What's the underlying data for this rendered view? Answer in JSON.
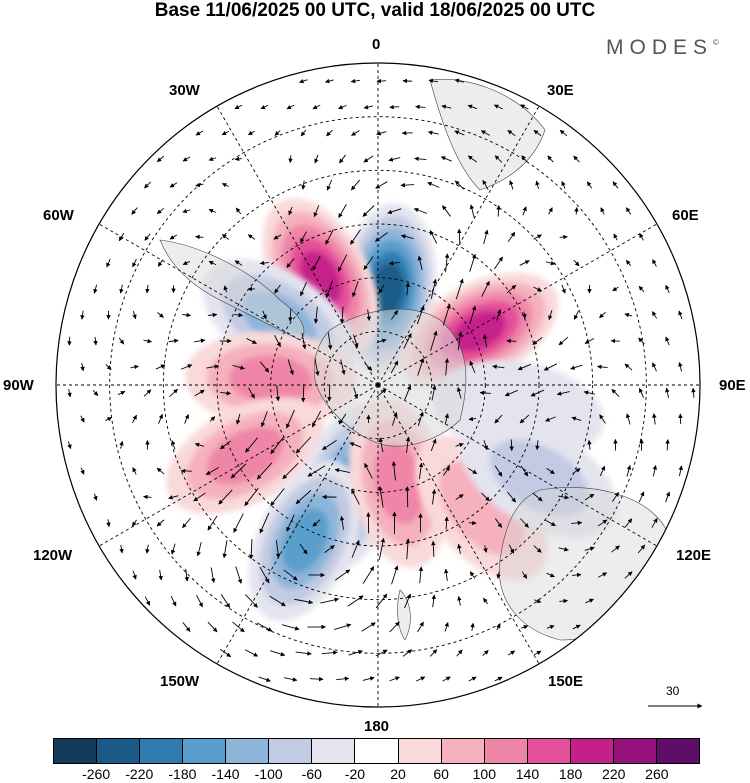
{
  "title": "Base 11/06/2025 00 UTC, valid 18/06/2025 00 UTC",
  "brand": "MODES",
  "brand_mark": "©",
  "longitude_labels": {
    "lon_0": "0",
    "lon_30e": "30E",
    "lon_60e": "60E",
    "lon_90e": "90E",
    "lon_120e": "120E",
    "lon_150e": "150E",
    "lon_180": "180",
    "lon_150w": "150W",
    "lon_120w": "120W",
    "lon_90w": "90W",
    "lon_60w": "60W",
    "lon_30w": "30W"
  },
  "reference_vector": {
    "value": "30"
  },
  "colorbar": {
    "colors": [
      "#143a5a",
      "#1c5b88",
      "#2f7bb0",
      "#5a9fcb",
      "#8db5da",
      "#c2cbe3",
      "#e4e4ef",
      "#ffffff",
      "#f9d9da",
      "#f5b1bd",
      "#ef86a7",
      "#e5509a",
      "#c4208a",
      "#94107a",
      "#5e0e66"
    ],
    "labels": [
      "-260",
      "-220",
      "-180",
      "-140",
      "-100",
      "-60",
      "-20",
      "20",
      "60",
      "100",
      "140",
      "180",
      "220",
      "260"
    ]
  },
  "anomaly_centers": [
    {
      "lon": 6,
      "lat": -63,
      "value": -240
    },
    {
      "lon": 62,
      "lat": -58,
      "value": 180
    },
    {
      "lon": -28,
      "lat": -56,
      "value": 200
    },
    {
      "lon": -57,
      "lat": -57,
      "value": -120
    },
    {
      "lon": -87,
      "lat": -60,
      "value": 110
    },
    {
      "lon": -118,
      "lat": -48,
      "value": 110
    },
    {
      "lon": -164,
      "lat": -60,
      "value": -160
    },
    {
      "lon": -155,
      "lat": -42,
      "value": -140
    },
    {
      "lon": 168,
      "lat": -62,
      "value": 120
    },
    {
      "lon": 140,
      "lat": -45,
      "value": 80
    },
    {
      "lon": 100,
      "lat": -50,
      "value": -50
    },
    {
      "lon": 120,
      "lat": -38,
      "value": -60
    }
  ]
}
